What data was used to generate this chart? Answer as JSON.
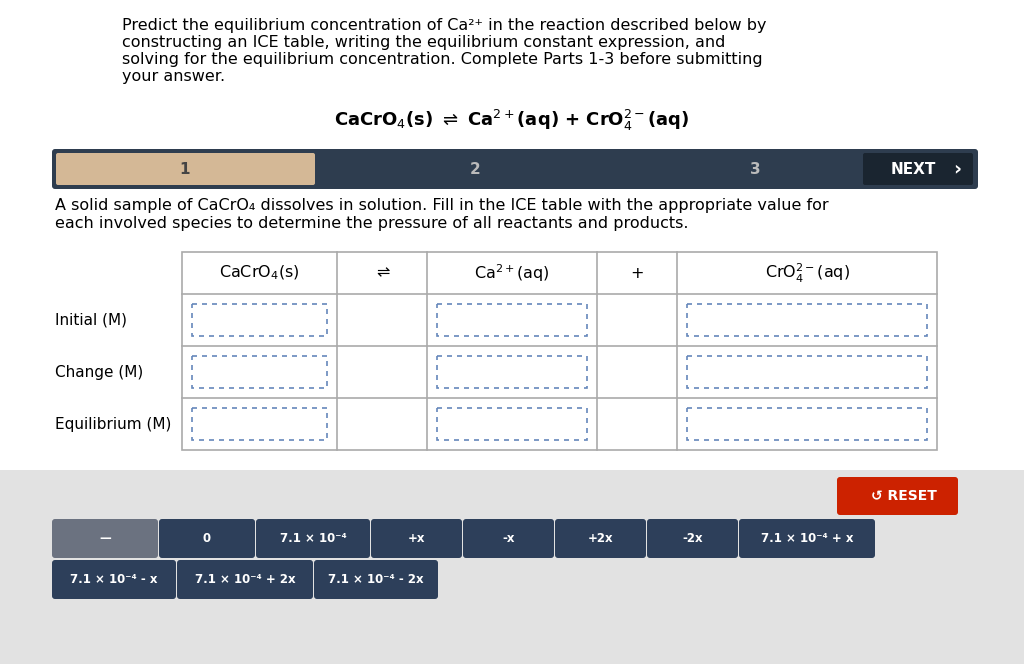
{
  "title_text_lines": [
    "Predict the equilibrium concentration of Ca²⁺ in the reaction described below by",
    "constructing an ICE table, writing the equilibrium constant expression, and",
    "solving for the equilibrium concentration. Complete Parts 1-3 before submitting",
    "your answer."
  ],
  "nav_bg": "#2e3d4f",
  "nav_highlight": "#d4b896",
  "nav_text_color": "#cccccc",
  "nav_dark_color": "#1a2530",
  "description_lines": [
    "A solid sample of CaCrO₄ dissolves in solution. Fill in the ICE table with the appropriate value for",
    "each involved species to determine the pressure of all reactants and products."
  ],
  "row_labels": [
    "Initial (M)",
    "Change (M)",
    "Equilibrium (M)"
  ],
  "bottom_bg": "#e2e2e2",
  "reset_btn_color": "#cc2200",
  "btn_color_gray": "#6b7280",
  "btn_color_navy": "#2d3f5a",
  "btn_row1": [
    "—",
    "0",
    "7.1 × 10⁻⁴",
    "+x",
    "-x",
    "+2x",
    "-2x",
    "7.1 × 10⁻⁴ + x"
  ],
  "btn_row2": [
    "7.1 × 10⁻⁴ - x",
    "7.1 × 10⁻⁴ + 2x",
    "7.1 × 10⁻⁴ - 2x"
  ],
  "bg_color": "#ffffff",
  "table_border_color": "#aaaaaa",
  "input_box_color": "#6688bb",
  "title_fontsize": 11.5,
  "eq_fontsize": 13,
  "desc_fontsize": 11.5,
  "row_label_fontsize": 11,
  "header_fontsize": 11.5,
  "nav_fontsize": 11,
  "btn_fontsize": 8.5
}
